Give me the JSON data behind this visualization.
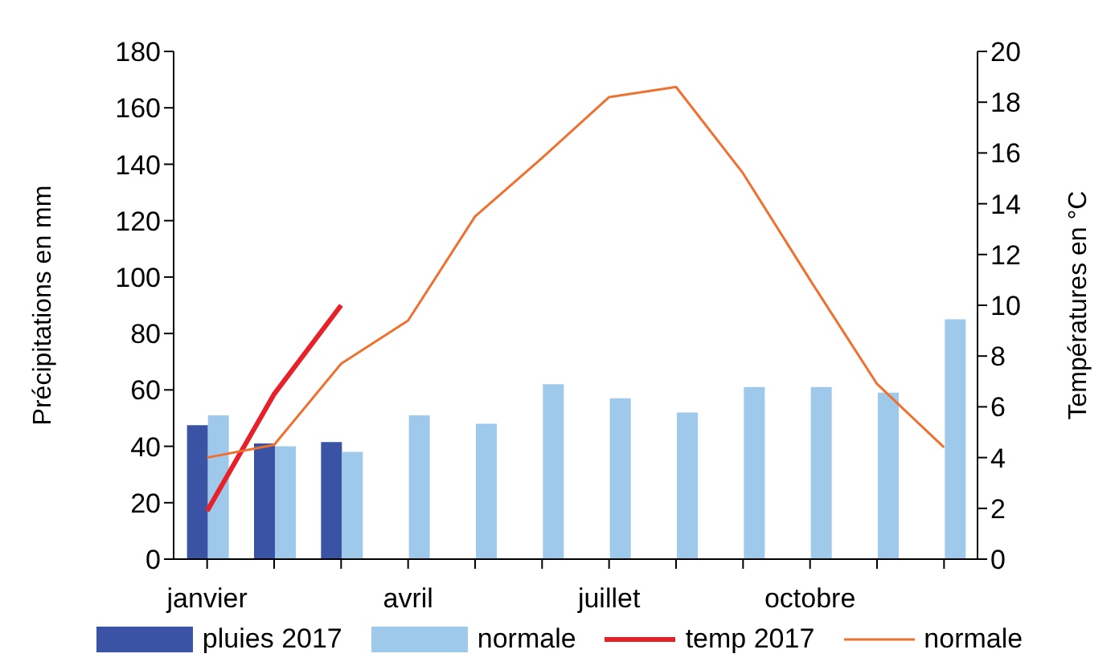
{
  "chart_data": {
    "type": "bar",
    "categories": [
      "janvier",
      null,
      null,
      "avril",
      null,
      null,
      "juillet",
      null,
      null,
      "octobre",
      null,
      null
    ],
    "ylabel": "Précipitations en mm",
    "y2label": "Températures en °C",
    "ylim": [
      0,
      180
    ],
    "yticks": [
      0,
      20,
      40,
      60,
      80,
      100,
      120,
      140,
      160,
      180
    ],
    "y2lim": [
      0,
      20
    ],
    "y2ticks": [
      0,
      2,
      4,
      6,
      8,
      10,
      12,
      14,
      16,
      18,
      20
    ],
    "grid": false,
    "legend": "bottom",
    "marker": "none",
    "series": [
      {
        "name": "pluies 2017",
        "color": "#3a53a4",
        "values": [
          47.5,
          41,
          41.5,
          null,
          null,
          null,
          null,
          null,
          null,
          null,
          null,
          null
        ]
      },
      {
        "name": "normale",
        "color": "#9ec9ea",
        "values": [
          51,
          40,
          38,
          51,
          48,
          62,
          57,
          52,
          61,
          61,
          59,
          85
        ]
      },
      {
        "name": "temp 2017",
        "type": "line",
        "axis": "y2",
        "color": "#e8202a",
        "values": [
          1.9,
          6.5,
          10,
          null,
          null,
          null,
          null,
          null,
          null,
          null,
          null,
          null
        ]
      },
      {
        "name": "normale",
        "type": "line",
        "axis": "y2",
        "color": "#f07030",
        "values": [
          4,
          4.5,
          7.7,
          9.4,
          13.5,
          15.8,
          18.2,
          18.6,
          15.2,
          11,
          6.9,
          4.4
        ]
      }
    ]
  }
}
